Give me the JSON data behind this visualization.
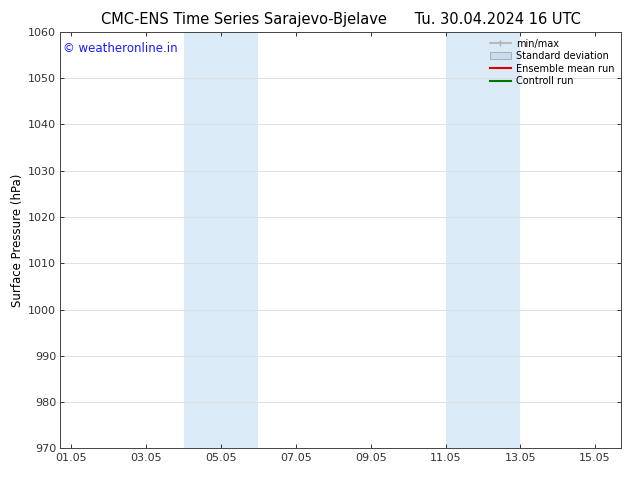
{
  "title_left": "CMC-ENS Time Series Sarajevo-Bjelave",
  "title_right": "Tu. 30.04.2024 16 UTC",
  "ylabel": "Surface Pressure (hPa)",
  "ylim": [
    970,
    1060
  ],
  "yticks": [
    970,
    980,
    990,
    1000,
    1010,
    1020,
    1030,
    1040,
    1050,
    1060
  ],
  "xtick_labels": [
    "01.05",
    "03.05",
    "05.05",
    "07.05",
    "09.05",
    "11.05",
    "13.05",
    "15.05"
  ],
  "xtick_positions": [
    0,
    2,
    4,
    6,
    8,
    10,
    12,
    14
  ],
  "xlim": [
    -0.3,
    14.7
  ],
  "shaded_bands": [
    {
      "x_start": 3.0,
      "x_end": 5.0,
      "color": "#daeaf7"
    },
    {
      "x_start": 10.0,
      "x_end": 12.0,
      "color": "#daeaf7"
    }
  ],
  "legend_items": [
    {
      "label": "min/max",
      "color": "#b0b0b0",
      "lw": 1.2,
      "style": "line_with_caps"
    },
    {
      "label": "Standard deviation",
      "color": "#c8dced",
      "lw": 8,
      "style": "thick"
    },
    {
      "label": "Ensemble mean run",
      "color": "#dd0000",
      "lw": 1.5,
      "style": "line"
    },
    {
      "label": "Controll run",
      "color": "#007700",
      "lw": 1.5,
      "style": "line"
    }
  ],
  "watermark_text": "© weatheronline.in",
  "watermark_color": "#1a1aff",
  "watermark_fontsize": 8.5,
  "title_fontsize": 10.5,
  "background_color": "#ffffff",
  "grid_color": "#dddddd",
  "tick_label_fontsize": 8,
  "ylabel_fontsize": 8.5
}
